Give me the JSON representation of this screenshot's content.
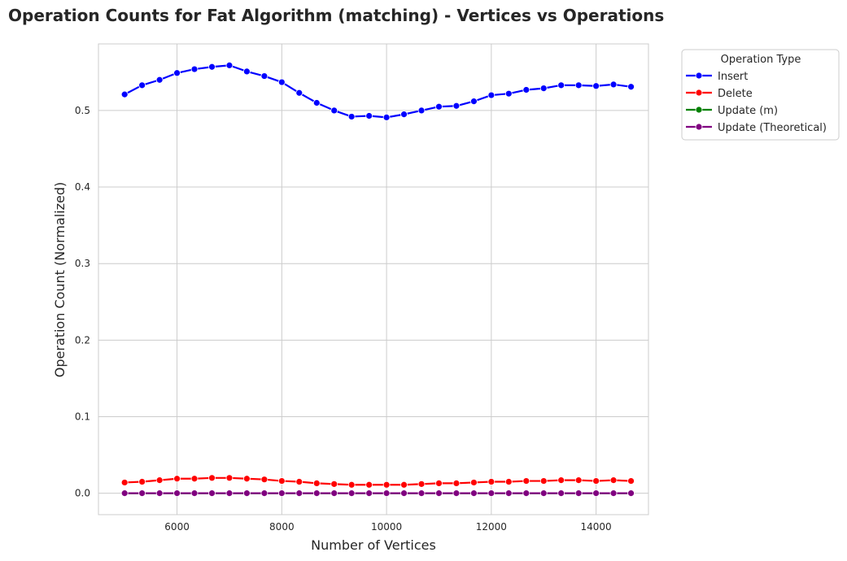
{
  "chart_data": {
    "type": "line",
    "title": "Operation Counts for Fat Algorithm (matching) - Vertices vs Operations",
    "xlabel": "Number of Vertices",
    "ylabel": "Operation Count (Normalized)",
    "xlim": [
      4500,
      15000
    ],
    "ylim": [
      -0.028,
      0.587
    ],
    "xticks": [
      6000,
      8000,
      10000,
      12000,
      14000
    ],
    "yticks": [
      0.0,
      0.1,
      0.2,
      0.3,
      0.4,
      0.5
    ],
    "ytick_labels": [
      "0.0",
      "0.1",
      "0.2",
      "0.3",
      "0.4",
      "0.5"
    ],
    "grid": true,
    "legend": {
      "title": "Operation Type",
      "placement": "outside-top-right"
    },
    "x": [
      5000,
      5333,
      5667,
      6000,
      6333,
      6667,
      7000,
      7333,
      7667,
      8000,
      8333,
      8667,
      9000,
      9333,
      9667,
      10000,
      10333,
      10667,
      11000,
      11333,
      11667,
      12000,
      12333,
      12667,
      13000,
      13333,
      13667,
      14000,
      14333,
      14667
    ],
    "series": [
      {
        "name": "Insert",
        "color": "#0000ff",
        "values": [
          0.521,
          0.533,
          0.54,
          0.549,
          0.554,
          0.557,
          0.559,
          0.551,
          0.545,
          0.537,
          0.523,
          0.51,
          0.5,
          0.492,
          0.493,
          0.491,
          0.495,
          0.5,
          0.505,
          0.506,
          0.512,
          0.52,
          0.522,
          0.527,
          0.529,
          0.533,
          0.533,
          0.532,
          0.534,
          0.531
        ]
      },
      {
        "name": "Delete",
        "color": "#ff0000",
        "values": [
          0.014,
          0.015,
          0.017,
          0.019,
          0.019,
          0.02,
          0.02,
          0.019,
          0.018,
          0.016,
          0.015,
          0.013,
          0.012,
          0.011,
          0.011,
          0.011,
          0.011,
          0.012,
          0.013,
          0.013,
          0.014,
          0.015,
          0.015,
          0.016,
          0.016,
          0.017,
          0.017,
          0.016,
          0.017,
          0.016
        ]
      },
      {
        "name": "Update (m)",
        "color": "#008000",
        "values": [
          0,
          0,
          0,
          0,
          0,
          0,
          0,
          0,
          0,
          0,
          0,
          0,
          0,
          0,
          0,
          0,
          0,
          0,
          0,
          0,
          0,
          0,
          0,
          0,
          0,
          0,
          0,
          0,
          0,
          0
        ]
      },
      {
        "name": "Update (Theoretical)",
        "color": "#800080",
        "values": [
          0,
          0,
          0,
          0,
          0,
          0,
          0,
          0,
          0,
          0,
          0,
          0,
          0,
          0,
          0,
          0,
          0,
          0,
          0,
          0,
          0,
          0,
          0,
          0,
          0,
          0,
          0,
          0,
          0,
          0
        ]
      }
    ]
  }
}
